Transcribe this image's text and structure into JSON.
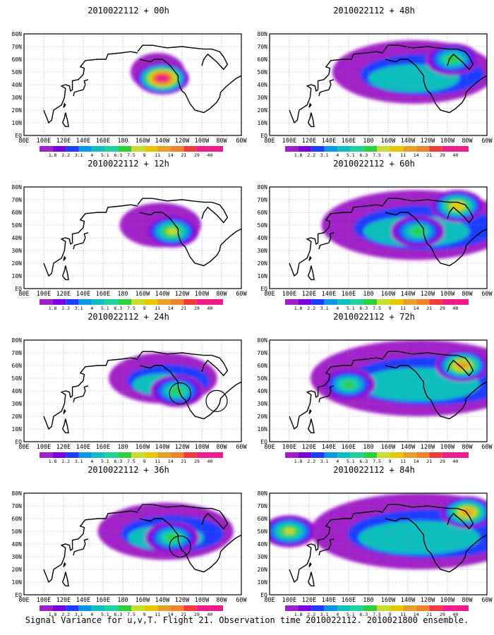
{
  "figure": {
    "footer": "Signal Variance for u,v,T. Flight 21. Observation time 2010022112. 2010021800 ensemble."
  },
  "colorbar": {
    "labels": [
      "1.8",
      "2.2",
      "3.1",
      "4",
      "5.1",
      "6.3",
      "7.5",
      "9",
      "11",
      "14",
      "21",
      "29",
      "40"
    ],
    "colors": [
      "#a020c8",
      "#7a00e0",
      "#1e3cff",
      "#0a96e6",
      "#0fbfbf",
      "#21d2a0",
      "#2bd03a",
      "#c8dc32",
      "#e6c800",
      "#e6a028",
      "#f0822e",
      "#f03c3c",
      "#f01a8c"
    ]
  },
  "axes": {
    "x_ticks": [
      "80E",
      "100E",
      "120E",
      "140E",
      "160E",
      "180",
      "160W",
      "140W",
      "120W",
      "100W",
      "80W",
      "60W"
    ],
    "y_ticks": [
      "80N",
      "70N",
      "60N",
      "50N",
      "40N",
      "30N",
      "20N",
      "10N",
      "EQ"
    ]
  },
  "chart_data": [
    {
      "type": "heatmap",
      "title": "2010022112 + 00h",
      "lead_hours": 0,
      "variable": "signal variance",
      "x_range": [
        "80E",
        "60W"
      ],
      "y_range": [
        "EQ",
        "80N"
      ],
      "max_level": "40",
      "high_centers": [
        {
          "lon": "140W",
          "lat": "45N",
          "level": "40"
        }
      ]
    },
    {
      "type": "heatmap",
      "title": "2010022112 + 12h",
      "lead_hours": 12,
      "variable": "signal variance",
      "x_range": [
        "80E",
        "60W"
      ],
      "y_range": [
        "EQ",
        "80N"
      ],
      "max_level": "9",
      "high_centers": [
        {
          "lon": "130W",
          "lat": "45N",
          "level": "9"
        }
      ]
    },
    {
      "type": "heatmap",
      "title": "2010022112 + 24h",
      "lead_hours": 24,
      "variable": "signal variance",
      "x_range": [
        "80E",
        "60W"
      ],
      "y_range": [
        "EQ",
        "80N"
      ],
      "max_level": "7.5",
      "high_centers": [
        {
          "lon": "125W",
          "lat": "40N",
          "level": "7.5"
        }
      ],
      "circles": [
        {
          "lon": "122W",
          "lat": "38N"
        },
        {
          "lon": "85W",
          "lat": "32N"
        }
      ]
    },
    {
      "type": "heatmap",
      "title": "2010022112 + 36h",
      "lead_hours": 36,
      "variable": "signal variance",
      "x_range": [
        "80E",
        "60W"
      ],
      "y_range": [
        "EQ",
        "80N"
      ],
      "max_level": "7.5",
      "high_centers": [
        {
          "lon": "130W",
          "lat": "45N",
          "level": "7.5"
        }
      ],
      "circles": [
        {
          "lon": "122W",
          "lat": "38N"
        }
      ]
    },
    {
      "type": "heatmap",
      "title": "2010022112 + 48h",
      "lead_hours": 48,
      "variable": "signal variance",
      "x_range": [
        "80E",
        "60W"
      ],
      "y_range": [
        "EQ",
        "80N"
      ],
      "max_level": "7.5",
      "high_centers": [
        {
          "lon": "95W",
          "lat": "60N",
          "level": "7.5"
        }
      ]
    },
    {
      "type": "heatmap",
      "title": "2010022112 + 60h",
      "lead_hours": 60,
      "variable": "signal variance",
      "x_range": [
        "80E",
        "60W"
      ],
      "y_range": [
        "EQ",
        "80N"
      ],
      "max_level": "11",
      "high_centers": [
        {
          "lon": "90W",
          "lat": "65N",
          "level": "11"
        },
        {
          "lon": "130W",
          "lat": "45N",
          "level": "7.5"
        }
      ]
    },
    {
      "type": "heatmap",
      "title": "2010022112 + 72h",
      "lead_hours": 72,
      "variable": "signal variance",
      "x_range": [
        "80E",
        "60W"
      ],
      "y_range": [
        "EQ",
        "80N"
      ],
      "max_level": "14",
      "high_centers": [
        {
          "lon": "85W",
          "lat": "60N",
          "level": "14"
        },
        {
          "lon": "160E",
          "lat": "45N",
          "level": "7.5"
        }
      ]
    },
    {
      "type": "heatmap",
      "title": "2010022112 + 84h",
      "lead_hours": 84,
      "variable": "signal variance",
      "x_range": [
        "80E",
        "60W"
      ],
      "y_range": [
        "EQ",
        "80N"
      ],
      "max_level": "14",
      "high_centers": [
        {
          "lon": "80W",
          "lat": "65N",
          "level": "14"
        },
        {
          "lon": "100E",
          "lat": "50N",
          "level": "9"
        }
      ]
    }
  ]
}
